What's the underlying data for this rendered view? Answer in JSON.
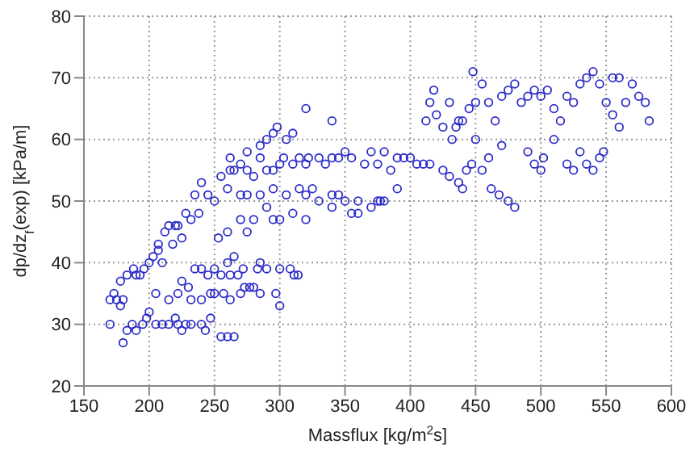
{
  "chart_data": {
    "type": "scatter",
    "xlabel": "Massflux [kg/m$^{2}$s]",
    "ylabel": "dp/dz$_{f}$(exp) [kPa/m]",
    "xlim": [
      150,
      600
    ],
    "ylim": [
      20,
      80
    ],
    "xticks": [
      150,
      200,
      250,
      300,
      350,
      400,
      450,
      500,
      550,
      600
    ],
    "yticks": [
      20,
      30,
      40,
      50,
      60,
      70,
      80
    ],
    "grid": true,
    "marker": "circle",
    "series": [
      {
        "color": "#2b2bc8",
        "x": [
          170,
          175,
          178,
          180,
          183,
          187,
          190,
          195,
          198,
          200,
          205,
          210,
          215,
          220,
          222,
          225,
          228,
          232,
          240,
          243,
          247,
          255,
          260,
          265,
          205,
          215,
          222,
          232,
          240,
          247,
          250,
          257,
          262,
          270,
          273,
          277,
          280,
          285,
          297,
          300,
          225,
          230,
          245,
          255,
          262,
          268,
          272,
          283,
          285,
          290,
          300,
          308,
          311,
          314,
          170,
          173,
          178,
          180,
          183,
          188,
          190,
          193,
          196,
          200,
          203,
          207,
          207,
          210,
          212,
          215,
          218,
          220,
          222,
          225,
          228,
          232,
          235,
          238,
          240,
          245,
          250,
          235,
          240,
          250,
          260,
          265,
          255,
          262,
          265,
          270,
          275,
          280,
          285,
          290,
          295,
          300,
          303,
          310,
          315,
          320,
          322,
          330,
          335,
          340,
          345,
          350,
          355,
          365,
          370,
          375,
          380,
          385,
          390,
          395,
          260,
          270,
          275,
          285,
          295,
          305,
          315,
          320,
          325,
          340,
          345,
          350,
          360,
          375,
          377,
          380,
          390,
          260,
          270,
          280,
          290,
          295,
          300,
          310,
          320,
          330,
          340,
          355,
          360,
          370,
          253,
          275,
          262,
          275,
          285,
          290,
          295,
          298,
          305,
          310,
          320,
          340,
          400,
          405,
          410,
          412,
          415,
          418,
          420,
          425,
          430,
          432,
          437,
          440,
          445,
          448,
          450,
          455,
          460,
          465,
          470,
          475,
          480,
          485,
          490,
          495,
          500,
          505,
          510,
          515,
          520,
          525,
          530,
          535,
          540,
          545,
          550,
          555,
          560,
          570,
          575,
          580,
          583,
          415,
          425,
          430,
          437,
          443,
          447,
          455,
          462,
          468,
          475,
          480,
          490,
          495,
          500,
          510,
          520,
          525,
          530,
          535,
          540,
          545,
          548,
          555,
          560,
          565,
          450,
          460,
          470,
          502,
          440,
          435
        ],
        "values": [
          30,
          34,
          33,
          27,
          29,
          30,
          29,
          30,
          31,
          32,
          30,
          30,
          30,
          31,
          30,
          29,
          30,
          30,
          30,
          29,
          31,
          28,
          28,
          28,
          35,
          34,
          35,
          34,
          34,
          35,
          35,
          35,
          34,
          35,
          36,
          36,
          36,
          35,
          35,
          33,
          37,
          36,
          38,
          38,
          38,
          38,
          39,
          39,
          40,
          39,
          39,
          39,
          38,
          38,
          34,
          35,
          37,
          34,
          38,
          39,
          38,
          38,
          39,
          40,
          41,
          42,
          43,
          40,
          45,
          46,
          43,
          46,
          46,
          44,
          48,
          47,
          51,
          48,
          53,
          51,
          50,
          39,
          39,
          39,
          40,
          41,
          54,
          55,
          55,
          56,
          55,
          54,
          57,
          55,
          55,
          56,
          57,
          56,
          57,
          56,
          57,
          57,
          56,
          57,
          57,
          58,
          57,
          56,
          58,
          56,
          58,
          55,
          57,
          57,
          52,
          51,
          51,
          51,
          52,
          51,
          52,
          51,
          52,
          51,
          51,
          50,
          50,
          50,
          50,
          50,
          52,
          45,
          47,
          47,
          49,
          47,
          47,
          48,
          47,
          50,
          49,
          48,
          48,
          49,
          44,
          45,
          57,
          58,
          59,
          60,
          61,
          62,
          60,
          61,
          65,
          63,
          57,
          56,
          56,
          63,
          66,
          68,
          64,
          62,
          66,
          60,
          63,
          63,
          65,
          71,
          66,
          69,
          66,
          63,
          67,
          68,
          69,
          66,
          67,
          68,
          67,
          68,
          65,
          63,
          67,
          66,
          69,
          70,
          71,
          69,
          66,
          70,
          70,
          69,
          67,
          66,
          63,
          56,
          55,
          54,
          53,
          55,
          56,
          55,
          52,
          51,
          50,
          49,
          58,
          56,
          55,
          60,
          56,
          55,
          58,
          56,
          55,
          57,
          58,
          64,
          62,
          66,
          60,
          57,
          59,
          57,
          52,
          62
        ]
      }
    ]
  }
}
